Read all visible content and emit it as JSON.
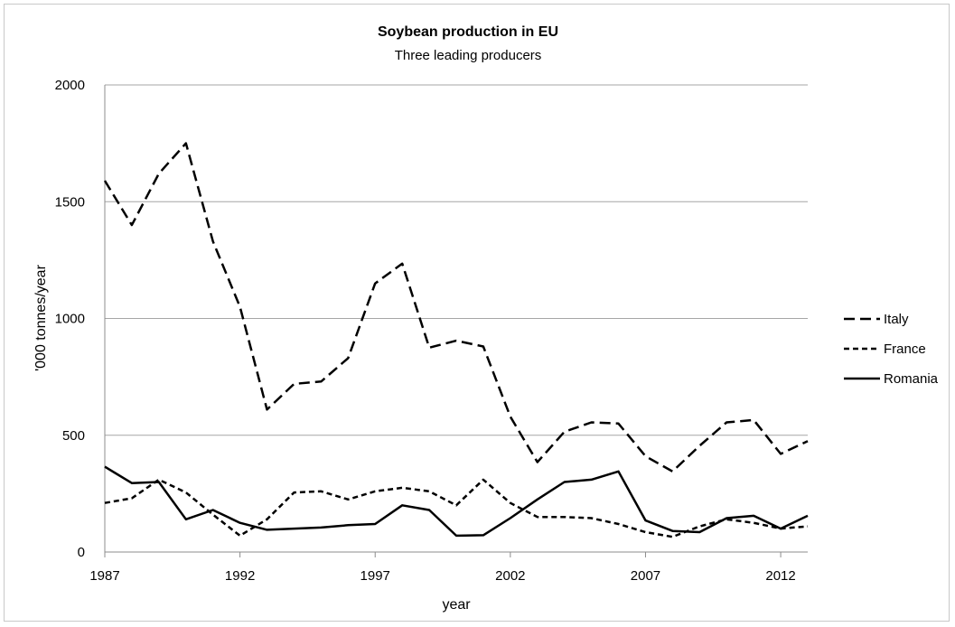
{
  "chart_data": {
    "type": "line",
    "title": "Soybean production in EU",
    "subtitle": "Three leading producers",
    "xlabel": "year",
    "ylabel": "'000 tonnes/year",
    "xlim": [
      1987,
      2013
    ],
    "ylim": [
      0,
      2000
    ],
    "x_ticks": [
      "1987",
      "1992",
      "1997",
      "2002",
      "2007",
      "2012"
    ],
    "y_ticks": [
      "0",
      "500",
      "1000",
      "1500",
      "2000"
    ],
    "grid": "horizontal",
    "legend": "right",
    "x": [
      1987,
      1988,
      1989,
      1990,
      1991,
      1992,
      1993,
      1994,
      1995,
      1996,
      1997,
      1998,
      1999,
      2000,
      2001,
      2002,
      2003,
      2004,
      2005,
      2006,
      2007,
      2008,
      2009,
      2010,
      2011,
      2012,
      2013
    ],
    "series": [
      {
        "name": "Italy",
        "style": "long-dash",
        "color": "#000000",
        "values": [
          1590,
          1400,
          1620,
          1750,
          1330,
          1050,
          610,
          720,
          730,
          830,
          1150,
          1235,
          875,
          905,
          880,
          580,
          385,
          515,
          555,
          550,
          410,
          345,
          455,
          555,
          565,
          420,
          475
        ]
      },
      {
        "name": "France",
        "style": "short-dash",
        "color": "#000000",
        "values": [
          210,
          230,
          310,
          255,
          160,
          70,
          140,
          255,
          260,
          225,
          260,
          275,
          260,
          200,
          310,
          210,
          150,
          150,
          145,
          120,
          85,
          65,
          110,
          140,
          125,
          100,
          110
        ]
      },
      {
        "name": "Romania",
        "style": "solid",
        "color": "#000000",
        "values": [
          365,
          295,
          300,
          140,
          180,
          125,
          95,
          100,
          105,
          115,
          120,
          200,
          180,
          70,
          72,
          145,
          225,
          300,
          310,
          345,
          135,
          90,
          85,
          145,
          155,
          100,
          155
        ]
      }
    ]
  }
}
